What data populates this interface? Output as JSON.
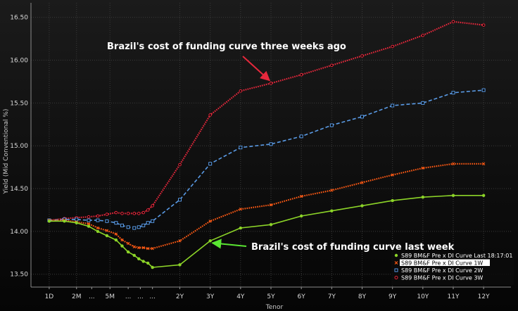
{
  "chart_data": {
    "type": "line",
    "xlabel": "Tenor",
    "ylabel": "Yield (Mid Conventional %)",
    "ylim": [
      13.35,
      16.67
    ],
    "y_ticks": [
      13.5,
      14.0,
      14.5,
      15.0,
      15.5,
      16.0,
      16.5
    ],
    "y_tick_labels": [
      "13.50",
      "14.00",
      "14.50",
      "15.00",
      "15.50",
      "16.00",
      "16.50"
    ],
    "x_tick_labels": [
      "1D",
      "2M",
      "...",
      "5M",
      "...",
      "...",
      "...",
      "2Y",
      "3Y",
      "4Y",
      "5Y",
      "6Y",
      "7Y",
      "8Y",
      "9Y",
      "10Y",
      "11Y",
      "12Y"
    ],
    "x_tick_positions": [
      0.0,
      0.9,
      1.4,
      2.0,
      2.6,
      3.0,
      3.4,
      4.3,
      5.3,
      6.3,
      7.3,
      8.3,
      9.3,
      10.3,
      11.3,
      12.3,
      13.3,
      14.3
    ],
    "grid": true,
    "legend_position": "bottom-right",
    "annotations": [
      {
        "text": "Brazil's cost of funding curve three weeks ago",
        "target_series": "3W",
        "target_x": 7.3
      },
      {
        "text": "Brazil's cost of funding curve last week",
        "target_series": "Last",
        "target_x": 5.3
      }
    ],
    "series": [
      {
        "name": "S89 BM&F Pre x DI Curve Last 18:17:01",
        "key": "Last",
        "color": "#8CD428",
        "style": "solid",
        "marker": "dot",
        "points": [
          [
            0.0,
            14.12
          ],
          [
            0.5,
            14.12
          ],
          [
            0.9,
            14.1
          ],
          [
            1.3,
            14.06
          ],
          [
            1.6,
            14.0
          ],
          [
            1.9,
            13.95
          ],
          [
            2.2,
            13.9
          ],
          [
            2.4,
            13.83
          ],
          [
            2.6,
            13.76
          ],
          [
            2.8,
            13.72
          ],
          [
            2.95,
            13.68
          ],
          [
            3.1,
            13.65
          ],
          [
            3.25,
            13.63
          ],
          [
            3.4,
            13.58
          ],
          [
            4.3,
            13.61
          ],
          [
            5.3,
            13.89
          ],
          [
            6.3,
            14.04
          ],
          [
            7.3,
            14.08
          ],
          [
            8.3,
            14.18
          ],
          [
            9.3,
            14.24
          ],
          [
            10.3,
            14.3
          ],
          [
            11.3,
            14.36
          ],
          [
            12.3,
            14.4
          ],
          [
            13.3,
            14.42
          ],
          [
            14.3,
            14.42
          ]
        ]
      },
      {
        "name": "S89 BM&F Pre x DI Curve 1W",
        "key": "1W",
        "color": "#FF5A14",
        "style": "dotted",
        "marker": "x",
        "points": [
          [
            0.0,
            14.13
          ],
          [
            0.5,
            14.13
          ],
          [
            0.9,
            14.11
          ],
          [
            1.3,
            14.09
          ],
          [
            1.6,
            14.04
          ],
          [
            1.9,
            14.01
          ],
          [
            2.2,
            13.97
          ],
          [
            2.4,
            13.9
          ],
          [
            2.6,
            13.86
          ],
          [
            2.8,
            13.82
          ],
          [
            2.95,
            13.81
          ],
          [
            3.1,
            13.81
          ],
          [
            3.25,
            13.8
          ],
          [
            3.4,
            13.8
          ],
          [
            4.3,
            13.89
          ],
          [
            5.3,
            14.12
          ],
          [
            6.3,
            14.26
          ],
          [
            7.3,
            14.31
          ],
          [
            8.3,
            14.41
          ],
          [
            9.3,
            14.48
          ],
          [
            10.3,
            14.57
          ],
          [
            11.3,
            14.66
          ],
          [
            12.3,
            14.74
          ],
          [
            13.3,
            14.79
          ],
          [
            14.3,
            14.79
          ]
        ]
      },
      {
        "name": "S89 BM&F Pre x DI Curve 2W",
        "key": "2W",
        "color": "#5A9BE6",
        "style": "dashed",
        "marker": "square",
        "points": [
          [
            0.0,
            14.13
          ],
          [
            0.5,
            14.14
          ],
          [
            0.9,
            14.14
          ],
          [
            1.3,
            14.13
          ],
          [
            1.6,
            14.13
          ],
          [
            1.9,
            14.12
          ],
          [
            2.2,
            14.1
          ],
          [
            2.4,
            14.07
          ],
          [
            2.6,
            14.05
          ],
          [
            2.8,
            14.04
          ],
          [
            2.95,
            14.05
          ],
          [
            3.1,
            14.07
          ],
          [
            3.25,
            14.1
          ],
          [
            3.4,
            14.12
          ],
          [
            4.3,
            14.37
          ],
          [
            5.3,
            14.79
          ],
          [
            6.3,
            14.98
          ],
          [
            7.3,
            15.02
          ],
          [
            8.3,
            15.11
          ],
          [
            9.3,
            15.24
          ],
          [
            10.3,
            15.34
          ],
          [
            11.3,
            15.47
          ],
          [
            12.3,
            15.5
          ],
          [
            13.3,
            15.62
          ],
          [
            14.3,
            15.65
          ]
        ]
      },
      {
        "name": "S89 BM&F Pre x DI Curve 3W",
        "key": "3W",
        "color": "#E6283C",
        "style": "dotted",
        "marker": "circle",
        "points": [
          [
            0.0,
            14.13
          ],
          [
            0.5,
            14.15
          ],
          [
            0.9,
            14.16
          ],
          [
            1.3,
            14.17
          ],
          [
            1.6,
            14.18
          ],
          [
            1.9,
            14.2
          ],
          [
            2.2,
            14.22
          ],
          [
            2.4,
            14.21
          ],
          [
            2.6,
            14.21
          ],
          [
            2.8,
            14.21
          ],
          [
            2.95,
            14.21
          ],
          [
            3.1,
            14.22
          ],
          [
            3.25,
            14.25
          ],
          [
            3.4,
            14.3
          ],
          [
            4.3,
            14.78
          ],
          [
            5.3,
            15.36
          ],
          [
            6.3,
            15.64
          ],
          [
            7.3,
            15.73
          ],
          [
            8.3,
            15.83
          ],
          [
            9.3,
            15.94
          ],
          [
            10.3,
            16.05
          ],
          [
            11.3,
            16.16
          ],
          [
            12.3,
            16.29
          ],
          [
            13.3,
            16.45
          ],
          [
            14.3,
            16.41
          ]
        ]
      }
    ]
  }
}
